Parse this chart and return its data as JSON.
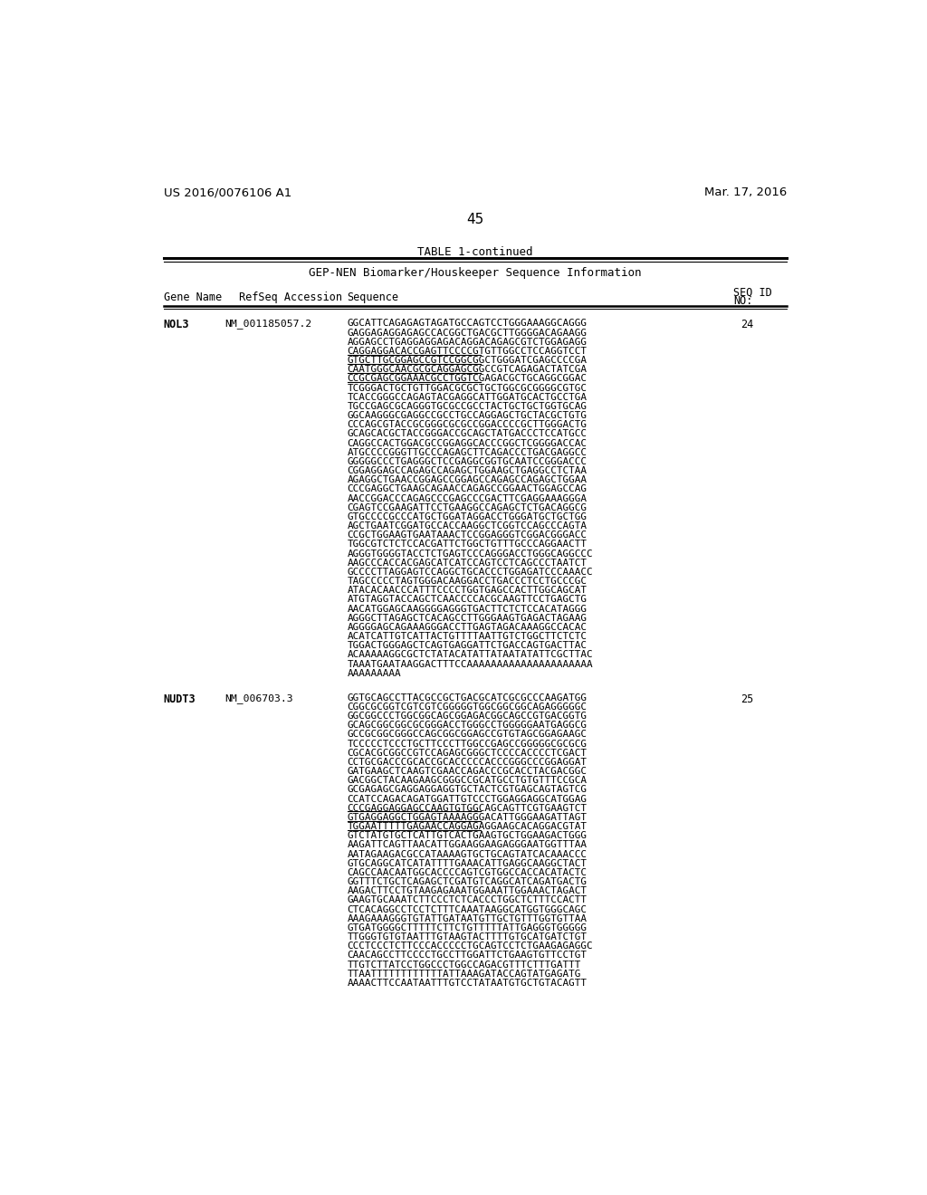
{
  "header_left": "US 2016/0076106 A1",
  "header_right": "Mar. 17, 2016",
  "page_number": "45",
  "table_title": "TABLE 1-continued",
  "table_subtitle": "GEP-NEN Biomarker/Houskeeper Sequence Information",
  "background_color": "#ffffff",
  "entries": [
    {
      "gene": "NOL3",
      "refseq": "NM_001185057.2",
      "seq_id": "24",
      "sequence_lines": [
        "GGCATTCAGAGAGTAGATGCCAGTCCTGGGAAAGGCAGGG",
        "GAGGAGAGGAGAGCCACGGCTGACGCTTGGGGACAGAAGG",
        "AGGAGCCTGAGGAGGAGACAGGACAGAGCGTCTGGAGAGG",
        "CAGGAGGACACCGAGTTCCCCGTGTTGGCCTCCAGGTCCT",
        "GTGCTTGCGGAGCCGTCCGGCGGCTGGGATCGAGCCCCGA",
        "CAATGGGCAACGCGCAGGAGCGGCCGTCAGAGACTATCGA",
        "CCGCGAGCGGAAACGCCTGGTCGAGACGCTGCAGGCGGAC",
        "TCGGGACTGCTGTTGGACGCGCTGCTGGCGCGGGGCGTGC",
        "TCACCGGGCCAGAGTACGAGGCATTGGATGCACTGCCTGA",
        "TGCCGAGCGCAGGGTGCGCCGCCTACTGCTGCTGGTGCAG",
        "GGCAAGGGCGAGGCCGCCTGCCAGGAGCTGCTACGCTGTG",
        "CCCAGCGTACCGCGGGCGCGCCGGACCCCGCTTGGGACTG",
        "GCAGCACGCTACCGGGACCGCAGCTATGACCCTCCATGCC",
        "CAGGCCACTGGACGCCGGAGGCACCCGGCTCGGGGACCAC",
        "ATGCCCCGGGTTGCCCAGAGCTTCAGACCCTGACGAGGCC",
        "GGGGGCCCTGAGGGCTCCGAGGCGGTGCAATCCGGGACCC",
        "CGGAGGAGCCAGAGCCAGAGCTGGAAGCTGAGGCCTCTAA",
        "AGAGGCTGAACCGGAGCCGGAGCCAGAGCCAGAGCTGGAA",
        "CCCGAGGCTGAAGCAGAACCAGAGCCGGAACTGGAGCCAG",
        "AACCGGACCCAGAGCCCGAGCCCGACTTCGAGGAAAGGGA",
        "CGAGTCCGAAGATTCCTGAAGGCCAGAGCTCTGACAGGCG",
        "GTGCCCCGCCCATGCTGGATAGGACCTGGGATGCTGCTGG",
        "AGCTGAATCGGATGCCACCAAGGCTCGGTCCAGCCCAGTA",
        "CCGCTGGAAGTGAATAAACTCCGGAGGGTCGGACGGGACC",
        "TGGCGTCTCTCCACGATTCTGGCTGTTTGCCCAGGAACTT",
        "AGGGTGGGGTACCTCTGAGTCCCAGGGACCTGGGCAGGCCC",
        "AAGCCCACCACGAGCATCATCCAGTCCTCAGCCCTAATCT",
        "GCCCCTTAGGAGTCCAGGCTGCACCCTGGAGATCCCAAACC",
        "TAGCCCCCTAGTGGGACAAGGACCTGACCCTCCTGCCCGC",
        "ATACACAACCCATTTCCCCTGGTGAGCCACTTGGCAGCAT",
        "ATGTAGGTACCAGCTCAACCCCACGCAAGTTCCTGAGCTG",
        "AACATGGAGCAAGGGGAGGGTGACTTCTCTCCACATAGGG",
        "AGGGCTTAGAGCTCACAGCCTTGGGAAGTGAGACTAGAAG",
        "AGGGGAGCAGAAAGGGACCTTGAGTAGACAAAGGCCACAC",
        "ACATCATTGTCATTACTGTTTTAATTGTCTGGCTTCTCTC",
        "TGGACTGGGAGCTCAGTGAGGATTCTGACCAGTGACTTAC",
        "ACAAAAAGGCGCTCTATACATATTATAATATATTCGCTTAC",
        "TAAATGAATAAGGACTTTCCAAAAAAAAAAAAAAAAAAAAA",
        "AAAAAAAAA"
      ],
      "underlined_lines": [
        3,
        4,
        5,
        6
      ]
    },
    {
      "gene": "NUDT3",
      "refseq": "NM_006703.3",
      "seq_id": "25",
      "sequence_lines": [
        "GGTGCAGCCTTACGCCGCTGACGCATCGCGCCCAAGATGG",
        "CGGCGCGGTCGTCGTCGGGGGTGGCGGCGGCAGAGGGGGC",
        "GGCGGCCCTGGCGGCAGCGGAGACGGCAGCCGTGACGGTG",
        "GCAGCGGCGGCGCGGGACCTGGGCCTGGGGGAATGAGGCG",
        "GCCGCGGCGGGCCAGCGGCGGAGCCGTGTAGCGGAGAAGC",
        "TCCCCCTCCCTGCTTCCCTTGGCCGAGCCGGGGGCGCGCG",
        "CGCACGCGGCCGTCCAGAGCGGGCTCCCCACCCCTCGACT",
        "CCTGCGACCCGCACCGCACCCCCACCCGGGCCCGGAGGAT",
        "GATGAAGCTCAAGTCGAACCAGACCCGCACCTACGACGGC",
        "GACGGCTACAAGAAGCGGGCCGCATGCCTGTGTTTCCGCA",
        "GCGAGAGCGAGGAGGAGGTGCTACTCGTGAGCAGTAGTCG",
        "CCATCCAGACAGATGGATTGTCCCTGGAGGAGGCATGGAG",
        "CCCGAGGAGGAGCCAAGTGTGGCAGCAGTTCGTGAAGTCT",
        "GTGAGGAGGCTGGAGTAAAAGGGACATTGGGAAGATTAGT",
        "TGGAATTTTTGAGAACCAGGAGAGGAAGCACAGGACGTAT",
        "GTCTATGTGCTCATTGTCACTGAAGTGCTGGAAGACTGGG",
        "AAGATTCAGTTAACATTGGAAGGAAGAGGGAATGGTTTAA",
        "AATAGAAGACGCCATAAAAGTGCTGCAGTATCACAAACCC",
        "GTGCAGGCATCATATTTTGAAACATTGAGGCAAGGCTACT",
        "CAGCCAACAATGGCACCCCAGTCGTGGCCACCACATACTC",
        "GGTTTCTGCTCAGAGCTCGATGTCAGGCATCAGATGACTG",
        "AAGACTTCCTGTAAGAGAAATGGAAATTGGAAACTAGACT",
        "GAAGTGCAAATCTTCCCTCTCACCCTGGCTCTTTCCACTT",
        "CTCACAGGCCTCCTCTTTCAAATAAGGCATGGTGGGCAGC",
        "AAAGAAAGGGTGTATTGATAATGTTGCTGTTTGGTGTTAA",
        "GTGATGGGGCTTTTTCTTCTGTTTTTATTGAGGGTGGGGG",
        "TTGGGTGTGTAATTTGTAAGTACTTTTGTGCATGATCTGT",
        "CCCTCCCTCTTCCCACCCCCTGCAGTCCTCTGAAGAGAGGC",
        "CAACAGCCTTCCCCTGCCTTGGATTCTGAAGTGTTCCTGT",
        "TTGTCTTATCCTGGCCCTGGCCAGACGTTTCTTTGATTT",
        "TTAATTTTTTTTTTTTATTAAAGATACCAGTATGAGATG",
        "AAAACTTCCAATAATTTGTCCTATAATGTGCTGTACAGTT"
      ],
      "underlined_lines": [
        12,
        13,
        14
      ]
    }
  ]
}
